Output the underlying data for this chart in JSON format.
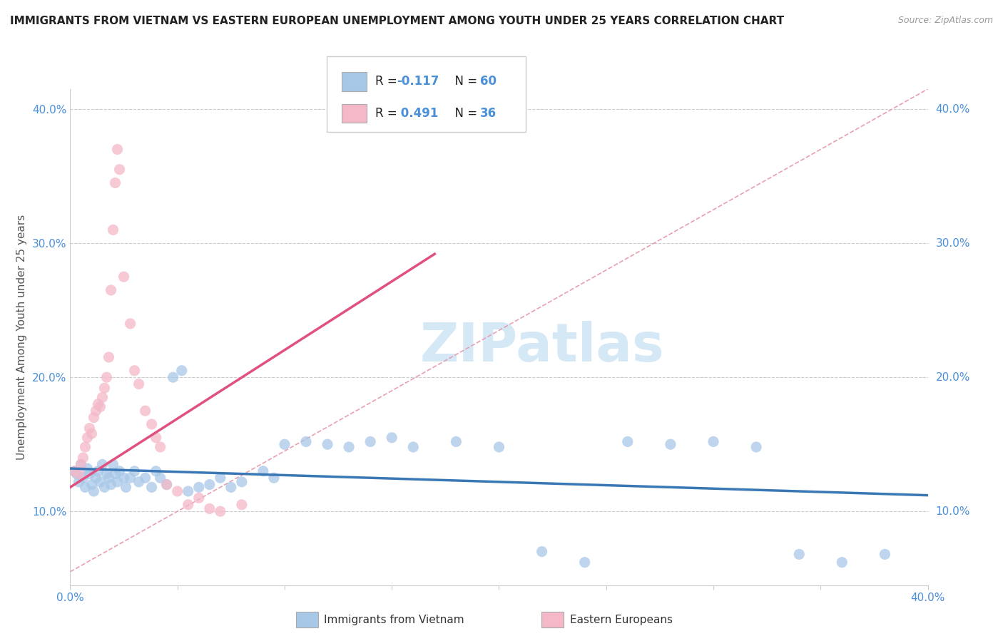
{
  "title": "IMMIGRANTS FROM VIETNAM VS EASTERN EUROPEAN UNEMPLOYMENT AMONG YOUTH UNDER 25 YEARS CORRELATION CHART",
  "source": "Source: ZipAtlas.com",
  "ylabel": "Unemployment Among Youth under 25 years",
  "xlim": [
    0.0,
    0.4
  ],
  "ylim": [
    0.045,
    0.415
  ],
  "yticks": [
    0.1,
    0.2,
    0.3,
    0.4
  ],
  "ytick_labels": [
    "10.0%",
    "20.0%",
    "30.0%",
    "40.0%"
  ],
  "xticks": [
    0.0,
    0.05,
    0.1,
    0.15,
    0.2,
    0.25,
    0.3,
    0.35,
    0.4
  ],
  "xtick_labels_show": [
    "0.0%",
    "",
    "",
    "",
    "",
    "",
    "",
    "",
    "40.0%"
  ],
  "watermark": "ZIPatlas",
  "blue_color": "#a8c8e8",
  "pink_color": "#f4b8c8",
  "blue_line_color": "#3a78b5",
  "pink_line_color": "#e05080",
  "diag_line_color": "#e8a0b0",
  "background_color": "#ffffff",
  "title_fontsize": 11,
  "scatter_alpha": 0.75,
  "scatter_size": 120,
  "blue_scatter": [
    [
      0.002,
      0.13
    ],
    [
      0.003,
      0.128
    ],
    [
      0.004,
      0.122
    ],
    [
      0.005,
      0.135
    ],
    [
      0.006,
      0.125
    ],
    [
      0.007,
      0.118
    ],
    [
      0.008,
      0.132
    ],
    [
      0.009,
      0.128
    ],
    [
      0.01,
      0.12
    ],
    [
      0.011,
      0.115
    ],
    [
      0.012,
      0.125
    ],
    [
      0.013,
      0.13
    ],
    [
      0.014,
      0.122
    ],
    [
      0.015,
      0.135
    ],
    [
      0.016,
      0.118
    ],
    [
      0.017,
      0.128
    ],
    [
      0.018,
      0.125
    ],
    [
      0.019,
      0.12
    ],
    [
      0.02,
      0.135
    ],
    [
      0.021,
      0.128
    ],
    [
      0.022,
      0.122
    ],
    [
      0.023,
      0.13
    ],
    [
      0.025,
      0.125
    ],
    [
      0.026,
      0.118
    ],
    [
      0.028,
      0.125
    ],
    [
      0.03,
      0.13
    ],
    [
      0.032,
      0.122
    ],
    [
      0.035,
      0.125
    ],
    [
      0.038,
      0.118
    ],
    [
      0.04,
      0.13
    ],
    [
      0.042,
      0.125
    ],
    [
      0.045,
      0.12
    ],
    [
      0.048,
      0.2
    ],
    [
      0.052,
      0.205
    ],
    [
      0.055,
      0.115
    ],
    [
      0.06,
      0.118
    ],
    [
      0.065,
      0.12
    ],
    [
      0.07,
      0.125
    ],
    [
      0.075,
      0.118
    ],
    [
      0.08,
      0.122
    ],
    [
      0.09,
      0.13
    ],
    [
      0.095,
      0.125
    ],
    [
      0.1,
      0.15
    ],
    [
      0.11,
      0.152
    ],
    [
      0.12,
      0.15
    ],
    [
      0.13,
      0.148
    ],
    [
      0.14,
      0.152
    ],
    [
      0.15,
      0.155
    ],
    [
      0.16,
      0.148
    ],
    [
      0.18,
      0.152
    ],
    [
      0.2,
      0.148
    ],
    [
      0.22,
      0.07
    ],
    [
      0.24,
      0.062
    ],
    [
      0.26,
      0.152
    ],
    [
      0.28,
      0.15
    ],
    [
      0.3,
      0.152
    ],
    [
      0.32,
      0.148
    ],
    [
      0.34,
      0.068
    ],
    [
      0.36,
      0.062
    ],
    [
      0.38,
      0.068
    ]
  ],
  "pink_scatter": [
    [
      0.002,
      0.13
    ],
    [
      0.004,
      0.128
    ],
    [
      0.005,
      0.135
    ],
    [
      0.006,
      0.14
    ],
    [
      0.007,
      0.148
    ],
    [
      0.008,
      0.155
    ],
    [
      0.009,
      0.162
    ],
    [
      0.01,
      0.158
    ],
    [
      0.011,
      0.17
    ],
    [
      0.012,
      0.175
    ],
    [
      0.013,
      0.18
    ],
    [
      0.014,
      0.178
    ],
    [
      0.015,
      0.185
    ],
    [
      0.016,
      0.192
    ],
    [
      0.017,
      0.2
    ],
    [
      0.018,
      0.215
    ],
    [
      0.019,
      0.265
    ],
    [
      0.02,
      0.31
    ],
    [
      0.021,
      0.345
    ],
    [
      0.022,
      0.37
    ],
    [
      0.023,
      0.355
    ],
    [
      0.025,
      0.275
    ],
    [
      0.028,
      0.24
    ],
    [
      0.03,
      0.205
    ],
    [
      0.032,
      0.195
    ],
    [
      0.035,
      0.175
    ],
    [
      0.038,
      0.165
    ],
    [
      0.04,
      0.155
    ],
    [
      0.042,
      0.148
    ],
    [
      0.045,
      0.12
    ],
    [
      0.05,
      0.115
    ],
    [
      0.055,
      0.105
    ],
    [
      0.06,
      0.11
    ],
    [
      0.065,
      0.102
    ],
    [
      0.07,
      0.1
    ],
    [
      0.08,
      0.105
    ]
  ],
  "blue_trendline": [
    [
      0.0,
      0.132
    ],
    [
      0.4,
      0.112
    ]
  ],
  "pink_trendline": [
    [
      0.0,
      0.118
    ],
    [
      0.17,
      0.292
    ]
  ],
  "diag_trendline": [
    [
      0.0,
      0.055
    ],
    [
      0.4,
      0.415
    ]
  ]
}
